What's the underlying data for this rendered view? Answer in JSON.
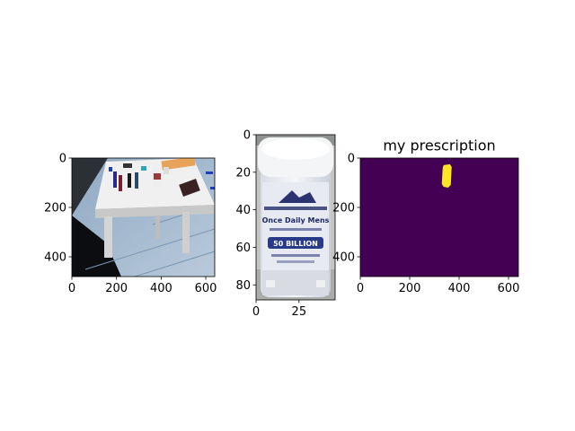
{
  "chart_data": [
    {
      "type": "image",
      "title": "",
      "content": "table-scene",
      "xlim": [
        0,
        640
      ],
      "ylim": [
        480,
        0
      ],
      "xticks": [
        0,
        200,
        400,
        600
      ],
      "yticks": [
        0,
        200,
        400
      ],
      "xtick_labels": [
        "0",
        "200",
        "400",
        "600"
      ],
      "ytick_labels": [
        "0",
        "200",
        "400"
      ]
    },
    {
      "type": "image",
      "title": "",
      "content": "pill-bottle-crop",
      "bottle_label": "Once Daily Mens 50 BILLION",
      "xlim": [
        0,
        46
      ],
      "ylim": [
        88,
        0
      ],
      "xticks": [
        0,
        25
      ],
      "yticks": [
        0,
        20,
        40,
        60,
        80
      ],
      "xtick_labels": [
        "0",
        "25"
      ],
      "ytick_labels": [
        "0",
        "20",
        "40",
        "60",
        "80"
      ]
    },
    {
      "type": "heatmap",
      "title": "my prescription",
      "content": "segmentation-mask",
      "background_color": "#440154",
      "mask_color": "#fde725",
      "mask_region": {
        "x": [
          330,
          370
        ],
        "y": [
          25,
          120
        ]
      },
      "xlim": [
        0,
        640
      ],
      "ylim": [
        480,
        0
      ],
      "xticks": [
        0,
        200,
        400,
        600
      ],
      "yticks": [
        0,
        200,
        400
      ],
      "xtick_labels": [
        "0",
        "200",
        "400",
        "600"
      ],
      "ytick_labels": [
        "0",
        "200",
        "400"
      ]
    }
  ]
}
